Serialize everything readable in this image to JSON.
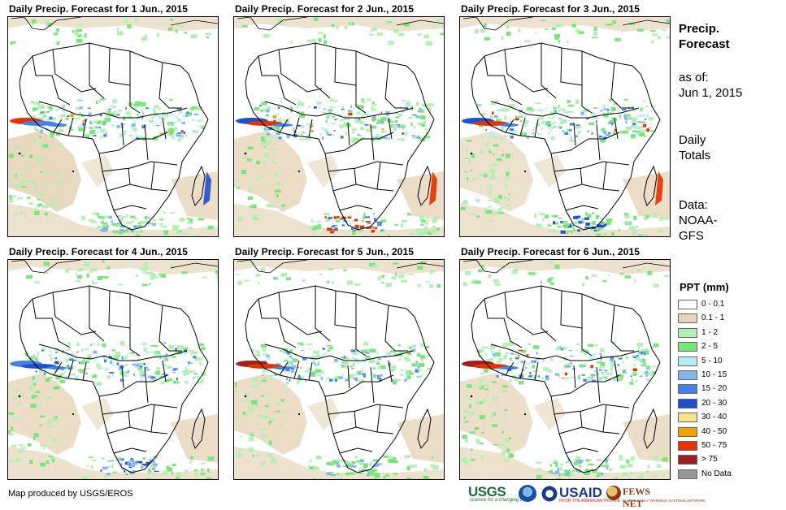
{
  "panels": [
    {
      "title": "Daily Precip. Forecast for 1 Jun., 2015",
      "day": 1
    },
    {
      "title": "Daily Precip. Forecast for 2 Jun., 2015",
      "day": 2
    },
    {
      "title": "Daily Precip. Forecast for 3 Jun., 2015",
      "day": 3
    },
    {
      "title": "Daily Precip. Forecast for 4 Jun., 2015",
      "day": 4
    },
    {
      "title": "Daily Precip. Forecast for 5 Jun., 2015",
      "day": 5
    },
    {
      "title": "Daily Precip. Forecast for 6 Jun., 2015",
      "day": 6
    }
  ],
  "sidebar": {
    "title_line1": "Precip.",
    "title_line2": "Forecast",
    "asof_line1": "as of:",
    "asof_line2": "Jun 1, 2015",
    "totals_line1": "Daily",
    "totals_line2": "Totals",
    "data_line1": "Data:",
    "data_line2": "NOAA-",
    "data_line3": "GFS"
  },
  "legend": {
    "title": "PPT (mm)",
    "items": [
      {
        "label": "0 - 0.1",
        "color": "#ffffff"
      },
      {
        "label": "0.1 - 1",
        "color": "#e6d5b8"
      },
      {
        "label": "1 - 2",
        "color": "#b4f0b4"
      },
      {
        "label": "2 - 5",
        "color": "#78e678"
      },
      {
        "label": "5 - 10",
        "color": "#b4f0f0"
      },
      {
        "label": "10 - 15",
        "color": "#82b4f0"
      },
      {
        "label": "15 - 20",
        "color": "#4682e6"
      },
      {
        "label": "20 - 30",
        "color": "#1e50d2"
      },
      {
        "label": "30 - 40",
        "color": "#f5e68c"
      },
      {
        "label": "40 - 50",
        "color": "#f5a000"
      },
      {
        "label": "50 - 75",
        "color": "#e63200"
      },
      {
        "label": "> 75",
        "color": "#a01e1e"
      },
      {
        "label": "No Data",
        "color": "#969696"
      }
    ]
  },
  "credit": "Map produced by USGS/EROS",
  "logos": {
    "usgs": "USGS",
    "usgs_tagline": "science for a changing world",
    "usaid": "USAID",
    "usaid_tagline": "FROM THE AMERICAN PEOPLE",
    "fews": "FEWS NET",
    "fews_tagline": "FAMINE EARLY WARNING SYSTEMS NETWORK"
  }
}
